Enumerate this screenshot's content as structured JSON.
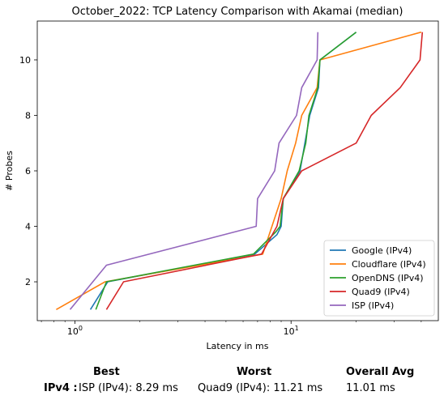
{
  "chart_data": {
    "type": "line",
    "title": "October_2022: TCP Latency Comparison with Akamai (median)",
    "xlabel": "Latency in ms",
    "ylabel": "# Probes",
    "xscale": "log",
    "xlim": [
      0.67,
      48
    ],
    "ylim": [
      0.6,
      11.4
    ],
    "xticks": [
      {
        "value": 1,
        "label": "10^0"
      },
      {
        "value": 10,
        "label": "10^1"
      }
    ],
    "yticks": [
      2,
      4,
      6,
      8,
      10
    ],
    "grid": false,
    "legend_position": "lower-right",
    "series": [
      {
        "name": "Google (IPv4)",
        "color": "#1f77b4",
        "points": [
          [
            1.18,
            1
          ],
          [
            1.42,
            2
          ],
          [
            6.8,
            3
          ],
          [
            8.6,
            3.7
          ],
          [
            9.0,
            4
          ],
          [
            9.2,
            5
          ],
          [
            11.0,
            6
          ],
          [
            12.2,
            8
          ],
          [
            13.4,
            9
          ],
          [
            13.6,
            10
          ],
          [
            20.0,
            11
          ]
        ]
      },
      {
        "name": "Cloudflare (IPv4)",
        "color": "#ff7f0e",
        "points": [
          [
            0.82,
            1
          ],
          [
            1.38,
            2
          ],
          [
            7.4,
            3
          ],
          [
            9.0,
            5
          ],
          [
            9.6,
            6
          ],
          [
            10.5,
            7
          ],
          [
            11.2,
            8
          ],
          [
            13.2,
            9
          ],
          [
            13.6,
            10
          ],
          [
            40.0,
            11
          ]
        ]
      },
      {
        "name": "OpenDNS (IPv4)",
        "color": "#2ca02c",
        "points": [
          [
            1.25,
            1
          ],
          [
            1.4,
            2
          ],
          [
            6.7,
            3
          ],
          [
            8.5,
            3.8
          ],
          [
            8.9,
            4
          ],
          [
            9.2,
            5
          ],
          [
            10.9,
            6
          ],
          [
            11.7,
            7
          ],
          [
            12.1,
            8
          ],
          [
            13.3,
            9
          ],
          [
            13.6,
            10
          ],
          [
            20.0,
            11
          ]
        ]
      },
      {
        "name": "Quad9 (IPv4)",
        "color": "#d62728",
        "points": [
          [
            1.4,
            1
          ],
          [
            1.68,
            2
          ],
          [
            7.3,
            3
          ],
          [
            8.6,
            4
          ],
          [
            9.2,
            5
          ],
          [
            11.2,
            6
          ],
          [
            20.0,
            7
          ],
          [
            23.5,
            8
          ],
          [
            32.0,
            9
          ],
          [
            39.5,
            10
          ],
          [
            40.5,
            11
          ]
        ]
      },
      {
        "name": "ISP (IPv4)",
        "color": "#9467bd",
        "points": [
          [
            0.95,
            1
          ],
          [
            1.4,
            2.6
          ],
          [
            6.9,
            4
          ],
          [
            7.0,
            5
          ],
          [
            8.4,
            6
          ],
          [
            8.8,
            7
          ],
          [
            10.6,
            8
          ],
          [
            11.2,
            9
          ],
          [
            13.2,
            10
          ],
          [
            13.3,
            11
          ]
        ]
      }
    ]
  },
  "stats": {
    "headers": {
      "best": "Best",
      "worst": "Worst",
      "avg": "Overall Avg"
    },
    "row_label": "IPv4 :",
    "best": "ISP (IPv4): 8.29 ms",
    "worst": "Quad9 (IPv4): 11.21 ms",
    "avg": "11.01 ms"
  }
}
